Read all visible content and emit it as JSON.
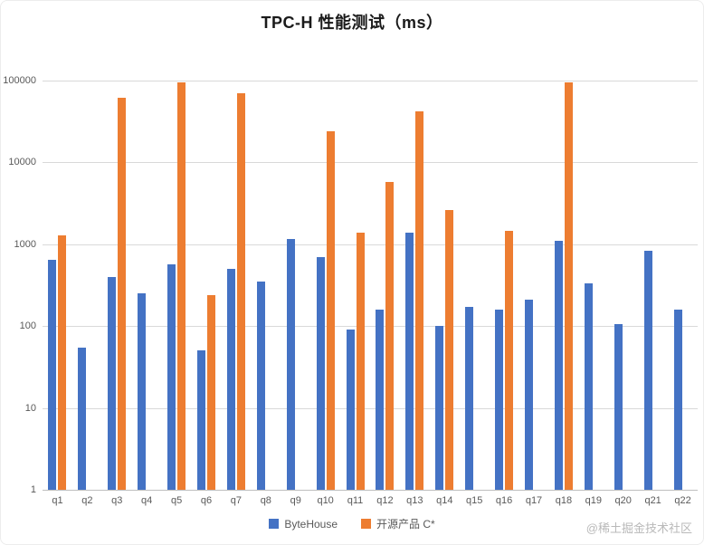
{
  "title": "TPC-H 性能测试（ms）",
  "watermark": "@稀土掘金技术社区",
  "chart_data": {
    "type": "bar",
    "title": "TPC-H 性能测试（ms）",
    "xlabel": "",
    "ylabel": "",
    "categories": [
      "q1",
      "q2",
      "q3",
      "q4",
      "q5",
      "q6",
      "q7",
      "q8",
      "q9",
      "q10",
      "q11",
      "q12",
      "q13",
      "q14",
      "q15",
      "q16",
      "q17",
      "q18",
      "q19",
      "q20",
      "q21",
      "q22"
    ],
    "series": [
      {
        "name": "ByteHouse",
        "color": "#4472C4",
        "values": [
          650,
          55,
          400,
          250,
          570,
          50,
          500,
          350,
          1150,
          700,
          90,
          160,
          1400,
          100,
          170,
          160,
          210,
          1100,
          330,
          105,
          830,
          160
        ]
      },
      {
        "name": "开源产品 C*",
        "color": "#ED7D31",
        "values": [
          1300,
          null,
          62000,
          null,
          95000,
          240,
          70000,
          null,
          null,
          24000,
          1400,
          5800,
          42000,
          2600,
          null,
          1450,
          null,
          95000,
          null,
          null,
          null,
          null
        ]
      }
    ],
    "y_axis": {
      "scale": "log",
      "min": 1,
      "max": 100000,
      "ticks": [
        1,
        10,
        100,
        1000,
        10000,
        100000
      ]
    },
    "ylim": [
      1,
      100000
    ],
    "grid": true,
    "legend_position": "bottom"
  }
}
